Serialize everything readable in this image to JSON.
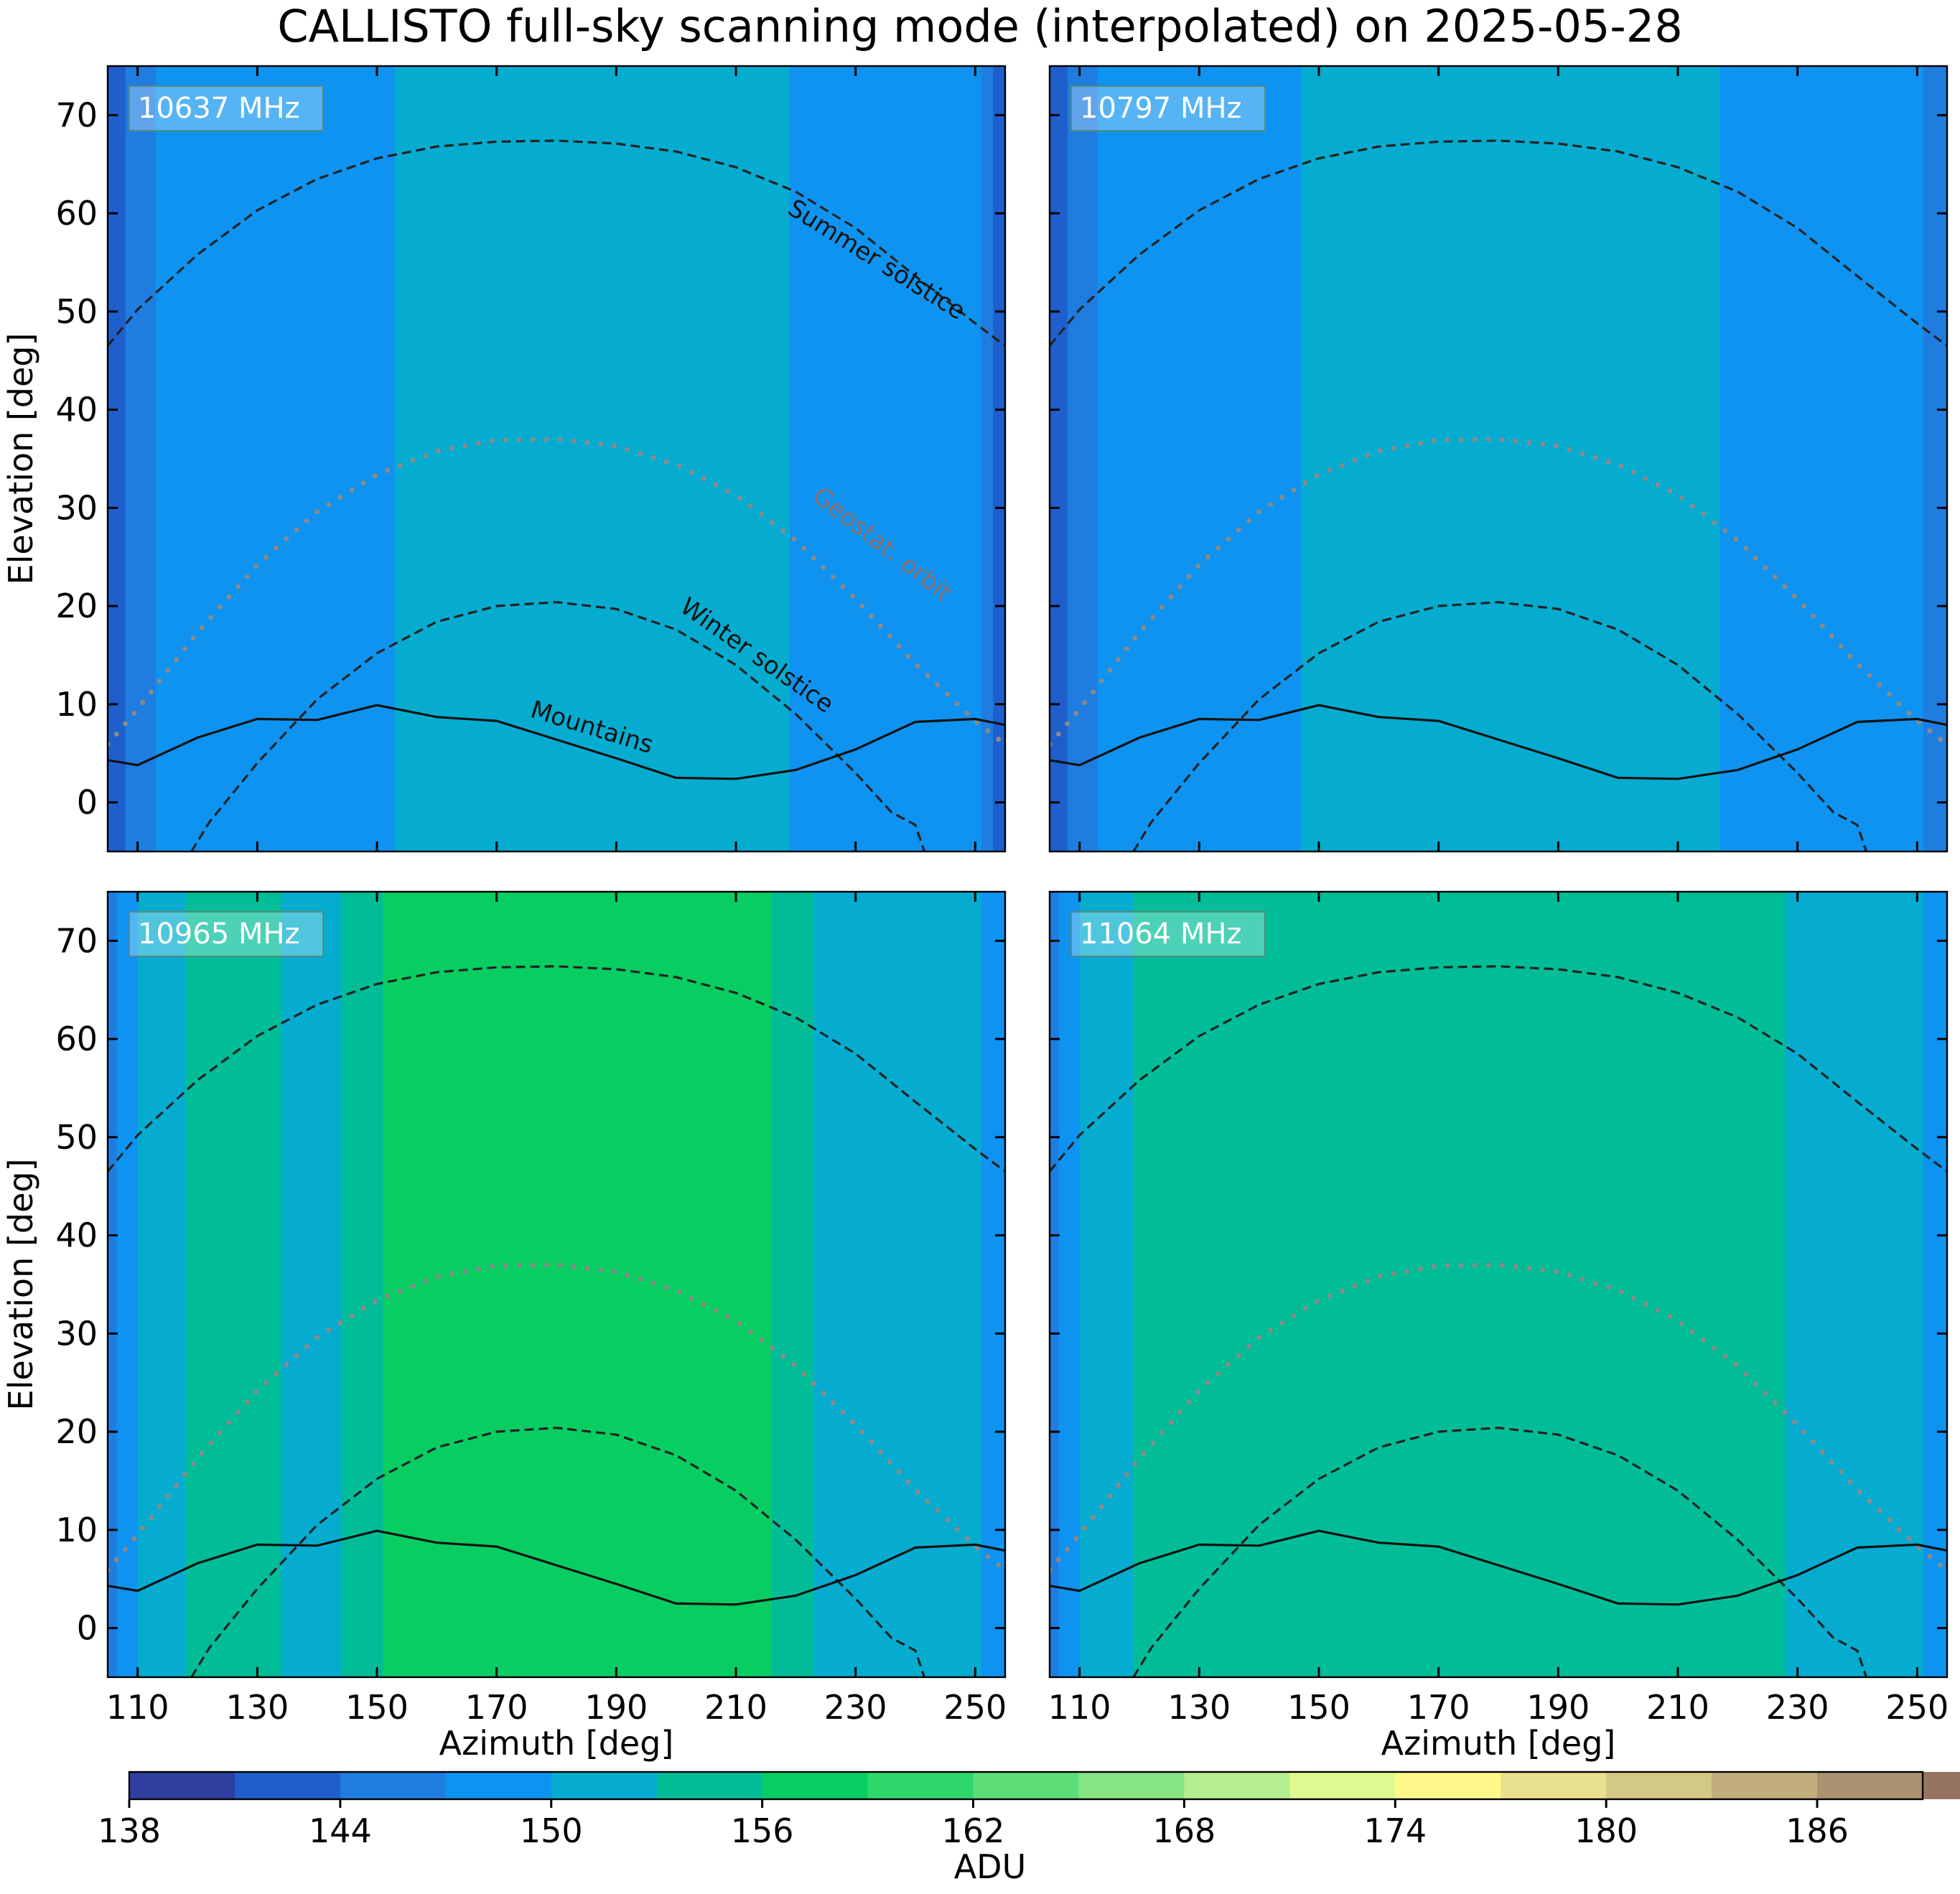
{
  "figure": {
    "title": "CALLISTO full-sky scanning mode (interpolated) on 2025-05-28",
    "xlabel": "Azimuth [deg]",
    "ylabel": "Elevation [deg]",
    "colorbar_label": "ADU"
  },
  "annotations": {
    "summer": "Summer solstice",
    "geo": "Geostat. orbit",
    "winter": "Winter solstice",
    "mountains": "Mountains"
  },
  "colorbar": {
    "min": 138,
    "max": 189,
    "step": 3,
    "ticks": [
      "138",
      "144",
      "150",
      "156",
      "162",
      "168",
      "174",
      "180",
      "186"
    ],
    "tick_values": [
      138,
      144,
      150,
      156,
      162,
      168,
      174,
      180,
      186
    ],
    "colors": [
      "#2f3fa0",
      "#1f5fcc",
      "#1f7de0",
      "#0e93f0",
      "#05acd0",
      "#00bd98",
      "#08cd62",
      "#2ed66b",
      "#5ddd78",
      "#88e584",
      "#b4ee8e",
      "#ddf98f",
      "#fff98c",
      "#e8e08c",
      "#d3c886",
      "#c1ae7c",
      "#ab9270",
      "#957462",
      "#7f5b52",
      "#8c6c64",
      "#a28c86",
      "#b8a8a3",
      "#cfc3c0",
      "#e5dedc",
      "#fbfafa"
    ]
  },
  "chart_data": [
    {
      "type": "heatmap",
      "label": "10637 MHz",
      "xlabel": "",
      "ylabel": "Elevation [deg]",
      "xlim": [
        105,
        255
      ],
      "ylim": [
        -5,
        75
      ],
      "xticks": [
        "110",
        "130",
        "150",
        "170",
        "190",
        "210",
        "230",
        "250"
      ],
      "yticks": [
        "0",
        "10",
        "20",
        "30",
        "40",
        "50",
        "60",
        "70"
      ],
      "bands": [
        {
          "x0": 105,
          "x1": 106.5,
          "v": 141
        },
        {
          "x0": 106.5,
          "x1": 108,
          "v": 142
        },
        {
          "x0": 108,
          "x1": 110,
          "v": 144
        },
        {
          "x0": 110,
          "x1": 113,
          "v": 146
        },
        {
          "x0": 113,
          "x1": 117,
          "v": 147
        },
        {
          "x0": 117,
          "x1": 153,
          "v": 149
        },
        {
          "x0": 153,
          "x1": 219,
          "v": 151
        },
        {
          "x0": 219,
          "x1": 221,
          "v": 149
        },
        {
          "x0": 221,
          "x1": 229,
          "v": 147
        },
        {
          "x0": 229,
          "x1": 244,
          "v": 148
        },
        {
          "x0": 244,
          "x1": 249,
          "v": 149
        },
        {
          "x0": 249,
          "x1": 251,
          "v": 147
        },
        {
          "x0": 251,
          "x1": 253,
          "v": 144
        },
        {
          "x0": 253,
          "x1": 255,
          "v": 142
        }
      ],
      "annotations": true,
      "show_xticklabels": false
    },
    {
      "type": "heatmap",
      "label": "10797 MHz",
      "xlabel": "",
      "ylabel": "",
      "xlim": [
        105,
        255
      ],
      "ylim": [
        -5,
        75
      ],
      "xticks": [
        "110",
        "130",
        "150",
        "170",
        "190",
        "210",
        "230",
        "250"
      ],
      "yticks": [
        "0",
        "10",
        "20",
        "30",
        "40",
        "50",
        "60",
        "70"
      ],
      "bands": [
        {
          "x0": 105,
          "x1": 106.5,
          "v": 141
        },
        {
          "x0": 106.5,
          "x1": 108,
          "v": 142
        },
        {
          "x0": 108,
          "x1": 110,
          "v": 144
        },
        {
          "x0": 110,
          "x1": 113,
          "v": 146
        },
        {
          "x0": 113,
          "x1": 117,
          "v": 147
        },
        {
          "x0": 117,
          "x1": 147,
          "v": 149
        },
        {
          "x0": 147,
          "x1": 217,
          "v": 151
        },
        {
          "x0": 217,
          "x1": 251,
          "v": 149
        },
        {
          "x0": 251,
          "x1": 253,
          "v": 146
        },
        {
          "x0": 253,
          "x1": 255,
          "v": 144
        }
      ],
      "annotations": false,
      "show_xticklabels": false
    },
    {
      "type": "heatmap",
      "label": "10965 MHz",
      "xlabel": "Azimuth [deg]",
      "ylabel": "Elevation [deg]",
      "xlim": [
        105,
        255
      ],
      "ylim": [
        -5,
        75
      ],
      "xticks": [
        "110",
        "130",
        "150",
        "170",
        "190",
        "210",
        "230",
        "250"
      ],
      "yticks": [
        "0",
        "10",
        "20",
        "30",
        "40",
        "50",
        "60",
        "70"
      ],
      "bands": [
        {
          "x0": 105,
          "x1": 106.5,
          "v": 146
        },
        {
          "x0": 106.5,
          "x1": 108,
          "v": 147
        },
        {
          "x0": 108,
          "x1": 110,
          "v": 149
        },
        {
          "x0": 110,
          "x1": 113,
          "v": 151
        },
        {
          "x0": 113,
          "x1": 118,
          "v": 152
        },
        {
          "x0": 118,
          "x1": 134,
          "v": 154
        },
        {
          "x0": 134,
          "x1": 144,
          "v": 152
        },
        {
          "x0": 144,
          "x1": 151,
          "v": 154
        },
        {
          "x0": 151,
          "x1": 216,
          "v": 156
        },
        {
          "x0": 216,
          "x1": 223,
          "v": 154
        },
        {
          "x0": 223,
          "x1": 251,
          "v": 152
        },
        {
          "x0": 251,
          "x1": 253,
          "v": 149
        },
        {
          "x0": 253,
          "x1": 255,
          "v": 147
        }
      ],
      "annotations": false,
      "show_xticklabels": true
    },
    {
      "type": "heatmap",
      "label": "11064 MHz",
      "xlabel": "Azimuth [deg]",
      "ylabel": "",
      "xlim": [
        105,
        255
      ],
      "ylim": [
        -5,
        75
      ],
      "xticks": [
        "110",
        "130",
        "150",
        "170",
        "190",
        "210",
        "230",
        "250"
      ],
      "yticks": [
        "0",
        "10",
        "20",
        "30",
        "40",
        "50",
        "60",
        "70"
      ],
      "bands": [
        {
          "x0": 105,
          "x1": 106.5,
          "v": 146
        },
        {
          "x0": 106.5,
          "x1": 108,
          "v": 147
        },
        {
          "x0": 108,
          "x1": 110,
          "v": 149
        },
        {
          "x0": 110,
          "x1": 113,
          "v": 151
        },
        {
          "x0": 113,
          "x1": 119,
          "v": 152
        },
        {
          "x0": 119,
          "x1": 228,
          "v": 154
        },
        {
          "x0": 228,
          "x1": 251,
          "v": 152
        },
        {
          "x0": 251,
          "x1": 253,
          "v": 149
        },
        {
          "x0": 253,
          "x1": 255,
          "v": 147
        }
      ],
      "annotations": false,
      "show_xticklabels": true
    }
  ],
  "curves": {
    "summer_solstice": {
      "az": [
        105,
        110,
        120,
        130,
        140,
        150,
        160,
        170,
        180,
        190,
        200,
        210,
        220,
        230,
        240,
        250,
        255
      ],
      "el": [
        46.5,
        50.2,
        55.8,
        60.3,
        63.5,
        65.6,
        66.8,
        67.3,
        67.4,
        67.1,
        66.3,
        64.7,
        62.2,
        58.5,
        53.6,
        48.8,
        46.5
      ]
    },
    "winter_solstice": {
      "az": [
        119,
        122,
        130,
        140,
        150,
        160,
        170,
        180,
        190,
        200,
        210,
        220,
        230,
        236,
        240,
        241.5
      ],
      "el": [
        -5,
        -2.0,
        4.0,
        10.5,
        15.2,
        18.4,
        20.0,
        20.4,
        19.7,
        17.6,
        14.0,
        9.0,
        3.0,
        -1.0,
        -2.3,
        -5
      ]
    },
    "geostationary": {
      "az": [
        105,
        110,
        120,
        130,
        140,
        150,
        160,
        170,
        180,
        190,
        200,
        210,
        220,
        230,
        240,
        250,
        255
      ],
      "el": [
        5.9,
        9.5,
        17.3,
        24.2,
        29.6,
        33.4,
        35.8,
        36.9,
        37.0,
        36.3,
        34.4,
        31.3,
        26.7,
        20.7,
        14.1,
        8.3,
        5.9
      ]
    },
    "mountains": {
      "az": [
        105,
        110,
        120,
        130,
        140,
        150,
        160,
        170,
        180,
        190,
        200,
        210,
        220,
        230,
        240,
        250,
        255
      ],
      "el": [
        4.3,
        3.8,
        6.6,
        8.5,
        8.4,
        9.9,
        8.7,
        8.3,
        6.4,
        4.5,
        2.5,
        2.4,
        3.3,
        5.4,
        8.2,
        8.5,
        7.9
      ]
    }
  }
}
